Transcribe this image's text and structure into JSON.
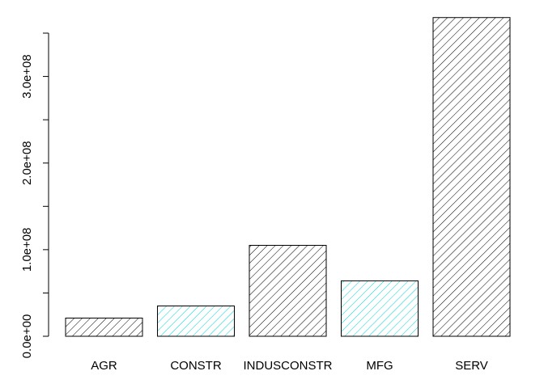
{
  "chart_data": {
    "type": "bar",
    "title": "",
    "xlabel": "",
    "ylabel": "",
    "categories": [
      "AGR",
      "CONSTR",
      "INDUSCONSTR",
      "MFG",
      "SERV"
    ],
    "values": [
      21000000,
      35000000,
      105000000,
      64000000,
      368000000
    ],
    "ylim": [
      0,
      350000000
    ],
    "y_ticks": [
      0,
      50000000,
      100000000,
      150000000,
      200000000,
      250000000,
      300000000,
      350000000
    ],
    "y_tick_labels": [
      "0.0e+00",
      "",
      "1.0e+08",
      "",
      "2.0e+08",
      "",
      "3.0e+08",
      ""
    ],
    "bar_colors": [
      "#ffffff",
      "#e0ffff",
      "#ffffff",
      "#e0ffff",
      "#ffffff"
    ],
    "hatch_colors": [
      "#000000",
      "#00cccc",
      "#000000",
      "#00cccc",
      "#000000"
    ],
    "grid": false,
    "legend": "none"
  }
}
